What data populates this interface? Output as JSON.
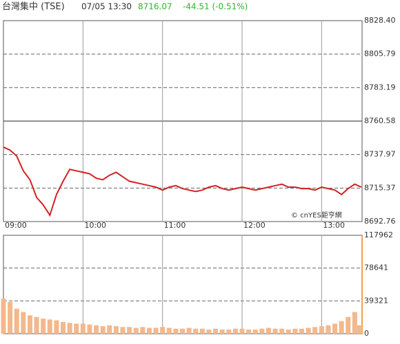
{
  "header": {
    "title": "台灣集中 (TSE)",
    "timestamp": "07/05 13:30",
    "last": 8716.07,
    "change": "-44.51 (-0.51%)"
  },
  "chart_data": [
    {
      "type": "line",
      "watermark": "© cnYES鉅亨網",
      "x": [
        "09:00",
        "09:05",
        "09:10",
        "09:15",
        "09:20",
        "09:25",
        "09:30",
        "09:35",
        "09:40",
        "09:45",
        "09:50",
        "09:55",
        "10:00",
        "10:05",
        "10:10",
        "10:15",
        "10:20",
        "10:25",
        "10:30",
        "10:35",
        "10:40",
        "10:45",
        "10:50",
        "10:55",
        "11:00",
        "11:05",
        "11:10",
        "11:15",
        "11:20",
        "11:25",
        "11:30",
        "11:35",
        "11:40",
        "11:45",
        "11:50",
        "11:55",
        "12:00",
        "12:05",
        "12:10",
        "12:15",
        "12:20",
        "12:25",
        "12:30",
        "12:35",
        "12:40",
        "12:45",
        "12:50",
        "12:55",
        "13:00",
        "13:05",
        "13:10",
        "13:15",
        "13:20",
        "13:25",
        "13:30"
      ],
      "series": [
        {
          "color": "#d42020",
          "values": [
            8743,
            8741,
            8737,
            8727,
            8721,
            8709,
            8704,
            8697,
            8711,
            8720,
            8728,
            8727,
            8726,
            8725,
            8722,
            8721,
            8724,
            8726,
            8723,
            8720,
            8719,
            8718,
            8717,
            8716,
            8714,
            8716,
            8717,
            8715,
            8714,
            8713,
            8714,
            8716,
            8717,
            8715,
            8714,
            8715,
            8716,
            8715,
            8714,
            8715,
            8716,
            8717,
            8718,
            8716,
            8716,
            8715,
            8715,
            8714,
            8716,
            8715,
            8714,
            8711,
            8715,
            8718,
            8716
          ]
        }
      ],
      "xlim": [
        "09:00",
        "13:30"
      ],
      "xticks": [
        "09:00",
        "10:00",
        "11:00",
        "12:00",
        "13:00"
      ],
      "ylim": [
        8692.76,
        8828.4
      ],
      "yticks": [
        8692.76,
        8715.37,
        8737.97,
        8760.58,
        8783.19,
        8805.79,
        {
          "value": 8828.4,
          "label": "8828.40"
        }
      ]
    },
    {
      "type": "bar",
      "x": [
        "09:00",
        "09:05",
        "09:10",
        "09:15",
        "09:20",
        "09:25",
        "09:30",
        "09:35",
        "09:40",
        "09:45",
        "09:50",
        "09:55",
        "10:00",
        "10:05",
        "10:10",
        "10:15",
        "10:20",
        "10:25",
        "10:30",
        "10:35",
        "10:40",
        "10:45",
        "10:50",
        "10:55",
        "11:00",
        "11:05",
        "11:10",
        "11:15",
        "11:20",
        "11:25",
        "11:30",
        "11:35",
        "11:40",
        "11:45",
        "11:50",
        "11:55",
        "12:00",
        "12:05",
        "12:10",
        "12:15",
        "12:20",
        "12:25",
        "12:30",
        "12:35",
        "12:40",
        "12:45",
        "12:50",
        "12:55",
        "13:00",
        "13:05",
        "13:10",
        "13:15",
        "13:20",
        "13:25",
        "13:30"
      ],
      "color": "#f3b88c",
      "values": [
        42000,
        38000,
        30000,
        26000,
        22000,
        20000,
        18000,
        17000,
        16000,
        14000,
        13000,
        12000,
        12000,
        11000,
        10000,
        9000,
        10000,
        9000,
        8000,
        8000,
        7000,
        8000,
        7000,
        7000,
        8000,
        7000,
        6000,
        6000,
        7000,
        6000,
        6000,
        5000,
        6000,
        5000,
        5000,
        6000,
        6000,
        5000,
        5000,
        6000,
        7000,
        6000,
        6000,
        5000,
        6000,
        6000,
        7000,
        8000,
        9000,
        10000,
        12000,
        15000,
        20000,
        26000,
        10000
      ],
      "xlim": [
        "09:00",
        "13:30"
      ],
      "ylim": [
        0,
        117962
      ],
      "yticks": [
        0,
        39321,
        78641,
        117962
      ]
    }
  ]
}
